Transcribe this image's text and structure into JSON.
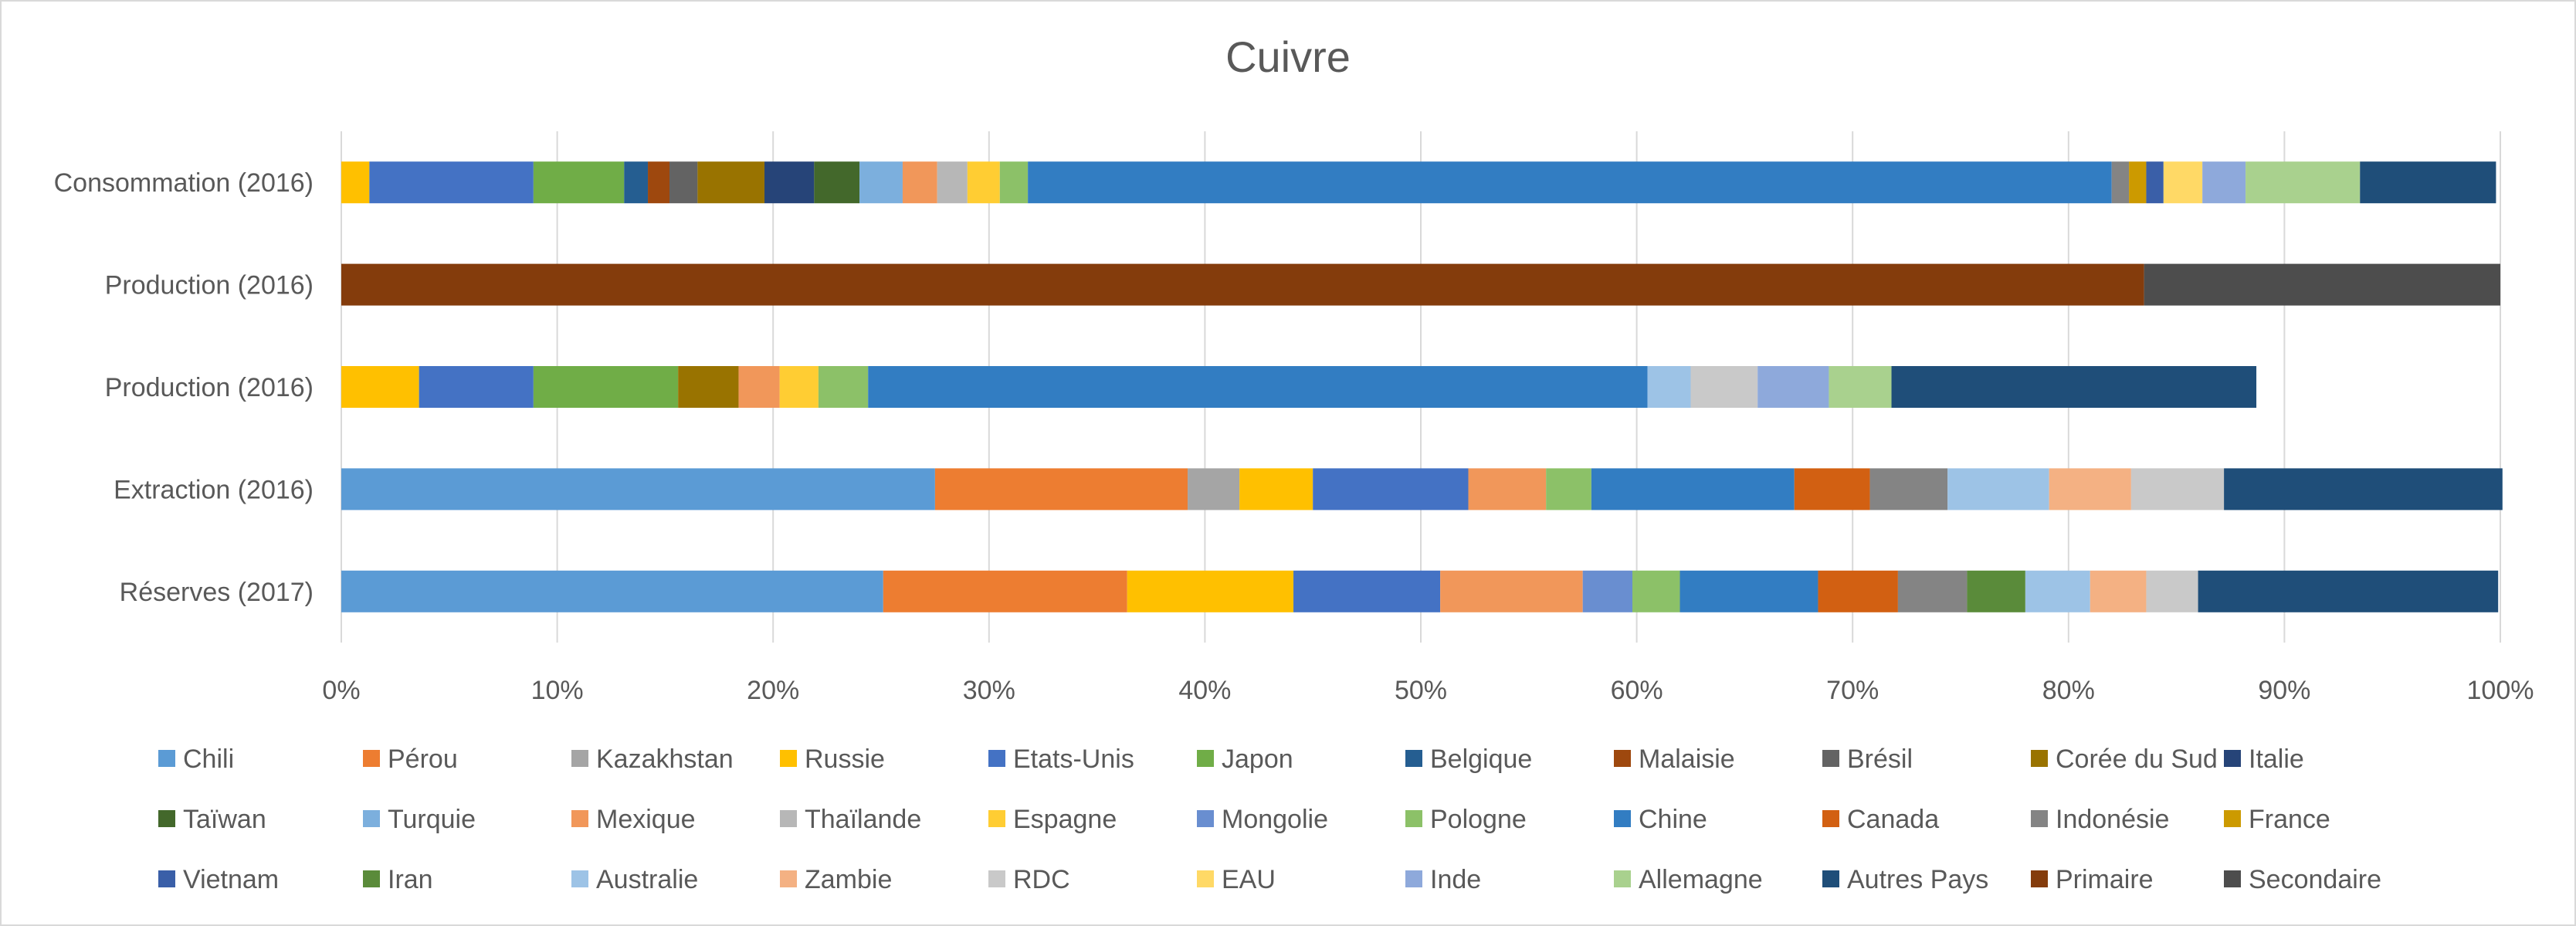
{
  "chart_data": {
    "type": "bar",
    "orientation": "horizontal",
    "stacked": "percent",
    "title": "Cuivre",
    "xlim": [
      0,
      100
    ],
    "x_ticks": [
      "0%",
      "10%",
      "20%",
      "30%",
      "40%",
      "50%",
      "60%",
      "70%",
      "80%",
      "90%",
      "100%"
    ],
    "grid": "vertical",
    "legend_position": "bottom",
    "categories": [
      "Consommation (2016)",
      "Production (2016)",
      "Production (2016) ",
      "Extraction (2016)",
      "Réserves (2017)"
    ],
    "series": [
      {
        "name": "Chili",
        "color": "#5B9BD5",
        "values": [
          0,
          0,
          0,
          27.5,
          25.1
        ]
      },
      {
        "name": "Pérou",
        "color": "#ED7D31",
        "values": [
          0,
          0,
          0,
          11.7,
          11.3
        ]
      },
      {
        "name": "Kazakhstan",
        "color": "#A5A5A5",
        "values": [
          0,
          0,
          0,
          2.4,
          0
        ]
      },
      {
        "name": "Russie",
        "color": "#FFC000",
        "values": [
          1.3,
          0,
          3.6,
          3.4,
          7.7
        ]
      },
      {
        "name": "Etats-Unis",
        "color": "#4472C4",
        "values": [
          7.6,
          0,
          5.3,
          7.2,
          6.8
        ]
      },
      {
        "name": "Japon",
        "color": "#70AD47",
        "values": [
          4.2,
          0,
          6.7,
          0,
          0
        ]
      },
      {
        "name": "Belgique",
        "color": "#255E91",
        "values": [
          1.1,
          0,
          0,
          0,
          0
        ]
      },
      {
        "name": "Malaisie",
        "color": "#9E480E",
        "values": [
          1.0,
          0,
          0,
          0,
          0
        ]
      },
      {
        "name": "Brésil",
        "color": "#636363",
        "values": [
          1.3,
          0,
          0,
          0,
          0
        ]
      },
      {
        "name": "Corée du Sud",
        "color": "#997300",
        "values": [
          3.1,
          0,
          2.8,
          0,
          0
        ]
      },
      {
        "name": "Italie",
        "color": "#264478",
        "values": [
          2.3,
          0,
          0,
          0,
          0
        ]
      },
      {
        "name": "Taïwan",
        "color": "#43682B",
        "values": [
          2.1,
          0,
          0,
          0,
          0
        ]
      },
      {
        "name": "Turquie",
        "color": "#7CAFDD",
        "values": [
          2.0,
          0,
          0,
          0,
          0
        ]
      },
      {
        "name": "Mexique",
        "color": "#F1975A",
        "values": [
          1.6,
          0,
          1.9,
          3.6,
          6.6
        ]
      },
      {
        "name": "Thaïlande",
        "color": "#B7B7B7",
        "values": [
          1.4,
          0,
          0,
          0,
          0
        ]
      },
      {
        "name": "Espagne",
        "color": "#FFCD33",
        "values": [
          1.5,
          0,
          1.8,
          0,
          0
        ]
      },
      {
        "name": "Mongolie",
        "color": "#698ED0",
        "values": [
          0,
          0,
          0,
          0,
          2.3
        ]
      },
      {
        "name": "Pologne",
        "color": "#8CC168",
        "values": [
          1.3,
          0,
          2.3,
          2.1,
          2.2
        ]
      },
      {
        "name": "Chine",
        "color": "#327DC2",
        "values": [
          50.2,
          0,
          36.1,
          9.4,
          6.4
        ]
      },
      {
        "name": "Canada",
        "color": "#D26012",
        "values": [
          0,
          0,
          0,
          3.5,
          3.7
        ]
      },
      {
        "name": "Indonésie",
        "color": "#848484",
        "values": [
          0.8,
          0,
          0,
          3.6,
          3.2
        ]
      },
      {
        "name": "France",
        "color": "#CC9A00",
        "values": [
          0.8,
          0,
          0,
          0,
          0
        ]
      },
      {
        "name": "Vietnam",
        "color": "#3A5FA8",
        "values": [
          0.8,
          0,
          0,
          0,
          0
        ]
      },
      {
        "name": "Iran",
        "color": "#5A8B3A",
        "values": [
          0,
          0,
          0,
          0,
          2.7
        ]
      },
      {
        "name": "Australie",
        "color": "#9DC3E6",
        "values": [
          0,
          0,
          2.0,
          4.7,
          3.0
        ]
      },
      {
        "name": "Zambie",
        "color": "#F4B183",
        "values": [
          0,
          0,
          0,
          3.8,
          2.6
        ]
      },
      {
        "name": "RDC",
        "color": "#C9C9C9",
        "values": [
          0,
          0,
          3.1,
          4.3,
          2.4
        ]
      },
      {
        "name": "EAU",
        "color": "#FFD966",
        "values": [
          1.8,
          0,
          0,
          0,
          0
        ]
      },
      {
        "name": "Inde",
        "color": "#8EA9DB",
        "values": [
          2.0,
          0,
          3.3,
          0,
          0
        ]
      },
      {
        "name": "Allemagne",
        "color": "#A9D18E",
        "values": [
          5.3,
          0,
          2.9,
          0,
          0
        ]
      },
      {
        "name": "Autres Pays",
        "color": "#1F4E79",
        "values": [
          6.3,
          0,
          16.9,
          12.9,
          13.9
        ]
      },
      {
        "name": "Primaire",
        "color": "#843C0C",
        "values": [
          0,
          83.5,
          0,
          0,
          0
        ]
      },
      {
        "name": "Secondaire",
        "color": "#4D4D4D",
        "values": [
          0,
          16.5,
          0,
          0,
          0
        ]
      }
    ]
  }
}
